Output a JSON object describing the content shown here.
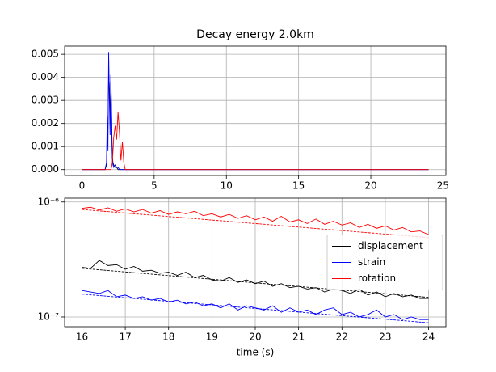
{
  "chart_data": [
    {
      "type": "line",
      "title": "Decay energy 2.0km",
      "x": [
        0,
        1.6,
        1.7,
        1.75,
        1.8,
        1.85,
        1.9,
        1.95,
        2.0,
        2.05,
        2.1,
        2.15,
        2.2,
        2.3,
        2.4,
        2.5,
        2.6,
        2.7,
        2.8,
        2.9,
        3.0,
        3.5,
        24
      ],
      "series": [
        {
          "color": "#000000",
          "values": [
            0,
            0,
            0.0002,
            0.0012,
            0.0018,
            0.0042,
            0.0036,
            0.002,
            0.0038,
            0.0022,
            0.0006,
            0.0003,
            0.0002,
            0.0001,
            0.0001,
            0,
            0,
            0,
            0,
            0,
            0,
            0,
            0
          ]
        },
        {
          "color": "#0000ff",
          "values": [
            0,
            0,
            0.0003,
            0.0023,
            0.0008,
            0.0051,
            0.003,
            0.0015,
            0.0041,
            0.0025,
            0.0005,
            0.0002,
            0.0001,
            0.0002,
            0.0001,
            0.0001,
            0,
            0,
            0,
            0,
            0,
            0,
            0
          ]
        },
        {
          "color": "#ff0000",
          "values": [
            0,
            0,
            0,
            0,
            0,
            0,
            0,
            0,
            0,
            0.0001,
            0.0003,
            0.0008,
            0.0014,
            0.0019,
            0.0013,
            0.0025,
            0.0016,
            0.0004,
            0.0012,
            0.0003,
            0,
            0,
            0
          ]
        }
      ],
      "xlim": [
        -1.2,
        25.2
      ],
      "xticks": [
        0,
        5,
        10,
        15,
        20,
        25
      ],
      "ylim": [
        -0.000255,
        0.005355
      ],
      "yticks": [
        {
          "value": 0,
          "label": "0.000"
        },
        {
          "value": 0.001,
          "label": "0.001"
        },
        {
          "value": 0.002,
          "label": "0.002"
        },
        {
          "value": 0.003,
          "label": "0.003"
        },
        {
          "value": 0.004,
          "label": "0.004"
        },
        {
          "value": 0.005,
          "label": "0.005"
        }
      ],
      "grid": true
    },
    {
      "type": "line",
      "xlabel": "time (s)",
      "yscale": "log",
      "legend": "center right",
      "x": [
        16,
        16.2,
        16.4,
        16.6,
        16.8,
        17,
        17.2,
        17.4,
        17.6,
        17.8,
        18,
        18.2,
        18.4,
        18.6,
        18.8,
        19,
        19.2,
        19.4,
        19.6,
        19.8,
        20,
        20.2,
        20.4,
        20.6,
        20.8,
        21,
        21.2,
        21.4,
        21.6,
        21.8,
        22,
        22.2,
        22.4,
        22.6,
        22.8,
        23,
        23.2,
        23.4,
        23.6,
        23.8,
        24
      ],
      "series": [
        {
          "name": "displacement",
          "color": "#000000",
          "values": [
            2.7e-07,
            2.65e-07,
            3.1e-07,
            2.8e-07,
            2.85e-07,
            2.6e-07,
            2.75e-07,
            2.5e-07,
            2.55e-07,
            2.4e-07,
            2.45e-07,
            2.3e-07,
            2.45e-07,
            2.2e-07,
            2.3e-07,
            2.1e-07,
            2.05e-07,
            2.2e-07,
            2e-07,
            2.1e-07,
            1.95e-07,
            2.05e-07,
            1.85e-07,
            1.95e-07,
            1.8e-07,
            1.85e-07,
            1.75e-07,
            1.8e-07,
            1.65e-07,
            1.75e-07,
            1.7e-07,
            1.6e-07,
            1.75e-07,
            1.55e-07,
            1.65e-07,
            1.5e-07,
            1.6e-07,
            1.5e-07,
            1.55e-07,
            1.45e-07,
            1.45e-07
          ]
        },
        {
          "name": "strain",
          "color": "#0000ff",
          "values": [
            1.7e-07,
            1.65e-07,
            1.6e-07,
            1.7e-07,
            1.5e-07,
            1.55e-07,
            1.45e-07,
            1.5e-07,
            1.4e-07,
            1.45e-07,
            1.35e-07,
            1.4e-07,
            1.3e-07,
            1.35e-07,
            1.25e-07,
            1.3e-07,
            1.2e-07,
            1.3e-07,
            1.15e-07,
            1.25e-07,
            1.2e-07,
            1.15e-07,
            1.25e-07,
            1.1e-07,
            1.2e-07,
            1.1e-07,
            1.15e-07,
            1.05e-07,
            1.15e-07,
            1.2e-07,
            1.05e-07,
            1.1e-07,
            1e-07,
            1.05e-07,
            1.15e-07,
            1e-07,
            1.05e-07,
            9.5e-08,
            1e-07,
            9.5e-08,
            9.5e-08
          ]
        },
        {
          "name": "rotation",
          "color": "#ff0000",
          "values": [
            8.8e-07,
            9e-07,
            8.5e-07,
            8.9e-07,
            8.3e-07,
            8.7e-07,
            8.2e-07,
            8.6e-07,
            8e-07,
            8.4e-07,
            7.8e-07,
            8.2e-07,
            7.9e-07,
            8.3e-07,
            7.6e-07,
            7.9e-07,
            7.4e-07,
            7.8e-07,
            7.2e-07,
            7.6e-07,
            7e-07,
            7.4e-07,
            6.8e-07,
            7.5e-07,
            6.7e-07,
            7e-07,
            6.5e-07,
            7.1e-07,
            6.4e-07,
            6.8e-07,
            6.3e-07,
            6.6e-07,
            6e-07,
            6.4e-07,
            5.9e-07,
            6.2e-07,
            5.7e-07,
            6e-07,
            5.5e-07,
            5.6e-07,
            5.2e-07
          ]
        }
      ],
      "fit_lines": [
        {
          "color": "#000000",
          "style": "dashed",
          "x": [
            16,
            24
          ],
          "values": [
            2.65e-07,
            1.48e-07
          ]
        },
        {
          "color": "#0000ff",
          "style": "dashed",
          "x": [
            16,
            24
          ],
          "values": [
            1.58e-07,
            8.9e-08
          ]
        },
        {
          "color": "#ff0000",
          "style": "dashed",
          "x": [
            16,
            24
          ],
          "values": [
            8.6e-07,
            4.9e-07
          ]
        }
      ],
      "xlim": [
        15.6,
        24.4
      ],
      "xticks": [
        16,
        17,
        18,
        19,
        20,
        21,
        22,
        23,
        24
      ],
      "ylim": [
        8.23e-08,
        1.08e-06
      ],
      "yticks": [
        {
          "value": 1e-07,
          "label": "10⁻⁷"
        },
        {
          "value": 1e-06,
          "label": "10⁻⁶"
        }
      ],
      "grid": true
    }
  ]
}
